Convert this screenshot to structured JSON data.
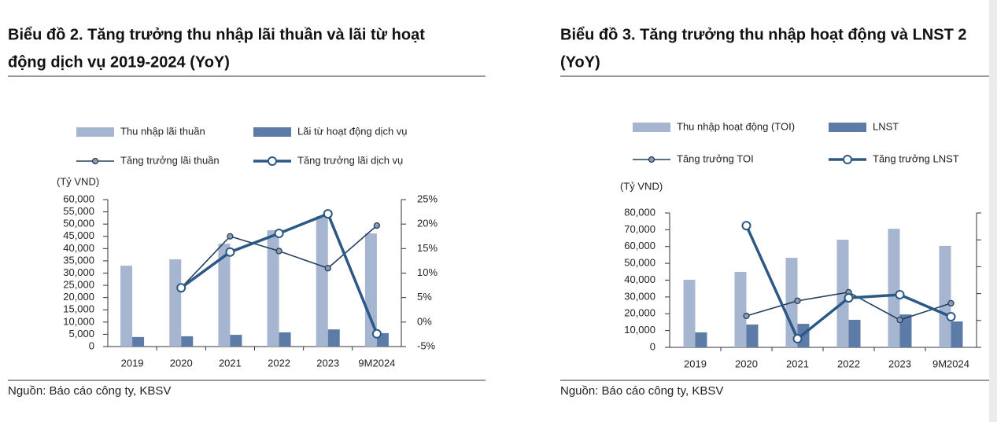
{
  "chart_data": [
    {
      "type": "bar_line",
      "title": [
        "Biểu đồ 2. Tăng trưởng thu nhập lãi thuần và lãi từ hoạt",
        "động dịch vụ 2019-2024 (YoY)"
      ],
      "y_label": "(Tỷ VND)",
      "source": "Nguồn: Báo cáo công ty, KBSV",
      "categories": [
        "2019",
        "2020",
        "2021",
        "2022",
        "2023",
        "9M2024"
      ],
      "series": [
        {
          "name": "Thu nhập lãi thuần",
          "color": "#a6b5d0",
          "kind": "bar",
          "values": [
            33000,
            35600,
            42000,
            47500,
            53200,
            46200
          ]
        },
        {
          "name": "Lãi từ hoạt động dịch vụ",
          "color": "#5c7ca7",
          "kind": "bar",
          "values": [
            3900,
            4200,
            4800,
            5800,
            7000,
            5500
          ]
        },
        {
          "name": "Tăng trưởng lãi thuần",
          "color": "#24405f",
          "kind": "line",
          "axis": "y2",
          "values": [
            null,
            7,
            17.5,
            14.5,
            11,
            19.7
          ]
        },
        {
          "name": "Tăng trưởng lãi dịch vụ",
          "color": "#2b5885",
          "kind": "line",
          "axis": "y2",
          "values": [
            null,
            7,
            14.3,
            18.1,
            22.1,
            -2.4
          ]
        }
      ],
      "ylim": [
        0,
        60000
      ],
      "yticks": [
        0,
        {
          "value": 5000,
          "label": "5,000"
        },
        {
          "value": 10000,
          "label": "10,000"
        },
        {
          "value": 15000,
          "label": "15,000"
        },
        {
          "value": 20000,
          "label": "20,000"
        },
        {
          "value": 25000,
          "label": "25,000"
        },
        {
          "value": 30000,
          "label": "30,000"
        },
        {
          "value": 35000,
          "label": "35,000"
        },
        {
          "value": 40000,
          "label": "40,000"
        },
        {
          "value": 45000,
          "label": "45,000"
        },
        {
          "value": 50000,
          "label": "50,000"
        },
        {
          "value": 55000,
          "label": "55,000"
        },
        {
          "value": 60000,
          "label": "60,000"
        }
      ],
      "y2lim": [
        -5,
        25
      ],
      "y2ticks": [
        {
          "value": -5,
          "label": "-5%"
        },
        {
          "value": 0,
          "label": "0%"
        },
        {
          "value": 5,
          "label": "5%"
        },
        {
          "value": 10,
          "label": "10%"
        },
        {
          "value": 15,
          "label": "15%"
        },
        {
          "value": 20,
          "label": "20%"
        },
        {
          "value": 25,
          "label": "25%"
        }
      ]
    },
    {
      "type": "bar_line",
      "title": [
        "Biểu đồ 3. Tăng trưởng thu nhập hoạt động và LNST 2",
        "(YoY)"
      ],
      "y_label": "(Tỷ VND)",
      "source": "Nguồn: Báo cáo công ty, KBSV",
      "categories": [
        "2019",
        "2020",
        "2021",
        "2022",
        "2023",
        "9M2024"
      ],
      "series": [
        {
          "name": "Thu nhập hoạt động (TOI)",
          "color": "#a6b5d0",
          "kind": "bar",
          "values": [
            40200,
            44900,
            53300,
            64100,
            70600,
            60400
          ]
        },
        {
          "name": "LNST",
          "color": "#5c7ca7",
          "kind": "bar",
          "values": [
            8900,
            13600,
            14000,
            16400,
            19600,
            15400
          ]
        },
        {
          "name": "Tăng trưởng TOI",
          "color": "#24405f",
          "kind": "line",
          "axis": "y2",
          "values": [
            null,
            1.7,
            7.3,
            10.5,
            0.2,
            6.4
          ]
        },
        {
          "name": "Tăng trưởng LNST",
          "color": "#2b5885",
          "kind": "line",
          "axis": "y2",
          "values": [
            null,
            35.3,
            -6.8,
            8.4,
            9.6,
            1.4
          ]
        }
      ],
      "ylim": [
        0,
        80000
      ],
      "yticks": [
        0,
        {
          "value": 10000,
          "label": "10,000"
        },
        {
          "value": 20000,
          "label": "20,000"
        },
        {
          "value": 30000,
          "label": "30,000"
        },
        {
          "value": 40000,
          "label": "40,000"
        },
        {
          "value": 50000,
          "label": "50,000"
        },
        {
          "value": 60000,
          "label": "60,000"
        },
        {
          "value": 70000,
          "label": "70,000"
        },
        {
          "value": 80000,
          "label": "80,000"
        }
      ],
      "y2lim": [
        -10,
        40
      ]
    }
  ]
}
